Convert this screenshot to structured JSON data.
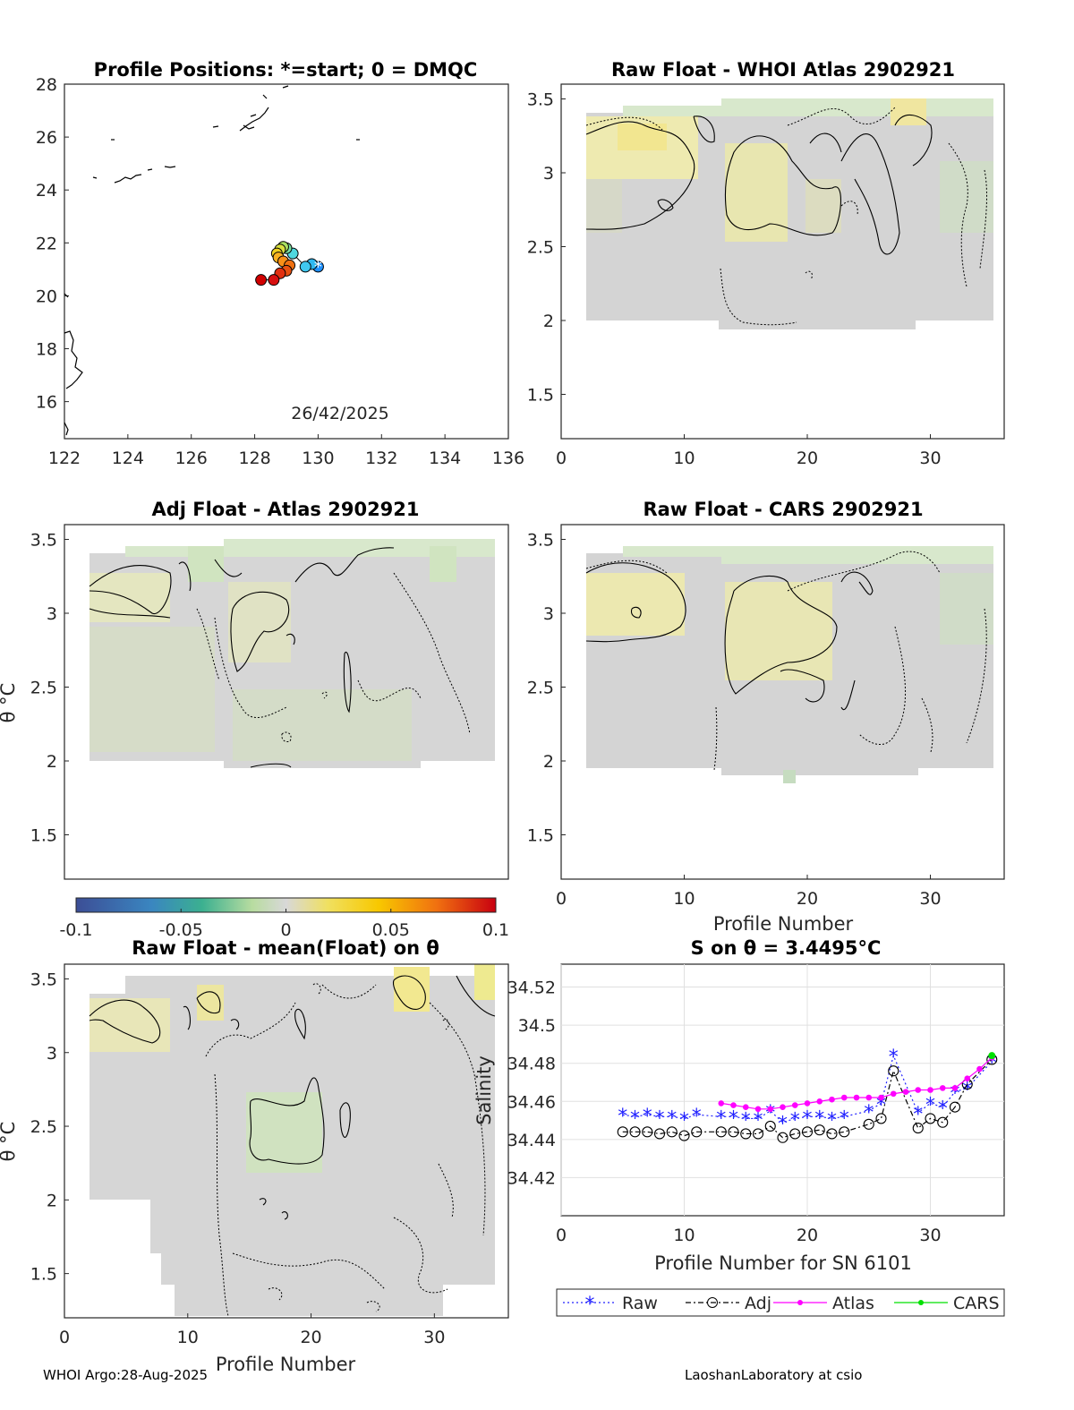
{
  "footer": {
    "left": "WHOI Argo:28-Aug-2025",
    "right": "LaoshanLaboratory at csio"
  },
  "chart_data": [
    {
      "id": "positions",
      "type": "scatter",
      "title": "Profile Positions: *=start; 0 = DMQC",
      "xlim": [
        122,
        136
      ],
      "ylim": [
        14.6,
        28
      ],
      "xticks": [
        122,
        124,
        126,
        128,
        130,
        132,
        134,
        136
      ],
      "yticks": [
        16,
        18,
        20,
        22,
        24,
        26,
        28
      ],
      "annotation": "26/42/2025",
      "start": [
        130.0,
        21.1
      ],
      "track": [
        {
          "lon": 130.0,
          "lat": 21.1,
          "color": "#1e90ff"
        },
        {
          "lon": 129.8,
          "lat": 21.2,
          "color": "#2fb8f0"
        },
        {
          "lon": 129.6,
          "lat": 21.1,
          "color": "#40c8f0"
        },
        {
          "lon": 129.2,
          "lat": 21.6,
          "color": "#4fd8e0"
        },
        {
          "lon": 129.0,
          "lat": 21.8,
          "color": "#7be0a0"
        },
        {
          "lon": 128.9,
          "lat": 21.85,
          "color": "#a8e060"
        },
        {
          "lon": 128.8,
          "lat": 21.75,
          "color": "#d8e040"
        },
        {
          "lon": 128.7,
          "lat": 21.6,
          "color": "#f0d020"
        },
        {
          "lon": 128.75,
          "lat": 21.45,
          "color": "#f8b020"
        },
        {
          "lon": 128.9,
          "lat": 21.3,
          "color": "#f89018"
        },
        {
          "lon": 129.1,
          "lat": 21.15,
          "color": "#f07010"
        },
        {
          "lon": 129.0,
          "lat": 20.95,
          "color": "#e85010"
        },
        {
          "lon": 128.8,
          "lat": 20.85,
          "color": "#e03010"
        },
        {
          "lon": 128.6,
          "lat": 20.6,
          "color": "#d81010"
        },
        {
          "lon": 128.2,
          "lat": 20.6,
          "color": "#d00000"
        }
      ]
    },
    {
      "id": "raw-atlas",
      "type": "heatmap",
      "title": "Raw Float - WHOI Atlas  2902921",
      "xlim": [
        0,
        36
      ],
      "ylim": [
        1.2,
        3.6
      ],
      "xticks": [
        0,
        10,
        20,
        30
      ],
      "yticks": [
        1.5,
        2,
        2.5,
        3,
        3.5
      ],
      "xlabel": ""
    },
    {
      "id": "adj-atlas",
      "type": "heatmap",
      "title": "Adj Float - Atlas  2902921",
      "xlim": [
        0,
        36
      ],
      "ylim": [
        1.2,
        3.6
      ],
      "xticks": [],
      "yticks": [
        1.5,
        2,
        2.5,
        3,
        3.5
      ],
      "ylabel": "θ °C"
    },
    {
      "id": "raw-cars",
      "type": "heatmap",
      "title": "Raw Float - CARS  2902921",
      "xlim": [
        0,
        36
      ],
      "ylim": [
        1.2,
        3.6
      ],
      "xticks": [
        0,
        10,
        20,
        30
      ],
      "yticks": [
        1.5,
        2,
        2.5,
        3,
        3.5
      ],
      "xlabel": "Profile Number"
    },
    {
      "id": "colorbar",
      "type": "colorbar",
      "ticks": [
        "-0.1",
        "-0.05",
        "0",
        "0.05",
        "0.1"
      ],
      "range": [
        -0.1,
        0.1
      ]
    },
    {
      "id": "raw-mean",
      "type": "heatmap",
      "title": "Raw Float - mean(Float) on θ",
      "xlim": [
        0,
        36
      ],
      "ylim": [
        1.2,
        3.6
      ],
      "xticks": [
        0,
        10,
        20,
        30
      ],
      "yticks": [
        1.5,
        2,
        2.5,
        3,
        3.5
      ],
      "xlabel": "Profile Number",
      "ylabel": "θ °C"
    },
    {
      "id": "salinity",
      "type": "line",
      "title": "S on θ = 3.4495°C",
      "xlim": [
        0,
        36
      ],
      "ylim": [
        34.4,
        34.532
      ],
      "xticks": [
        0,
        10,
        20,
        30
      ],
      "yticks": [
        34.42,
        34.44,
        34.46,
        34.48,
        34.5,
        34.52
      ],
      "xlabel": "Profile Number for SN 6101",
      "ylabel": "Salinity",
      "series": [
        {
          "name": "Raw",
          "color": "#2020ff",
          "x": [
            5,
            6,
            7,
            8,
            9,
            10,
            11,
            13,
            14,
            15,
            16,
            17,
            18,
            19,
            20,
            21,
            22,
            23,
            25,
            26,
            27,
            29,
            30,
            31,
            32,
            33,
            35
          ],
          "values": [
            34.453,
            34.452,
            34.453,
            34.452,
            34.452,
            34.451,
            34.453,
            34.452,
            34.452,
            34.451,
            34.451,
            34.455,
            34.449,
            34.451,
            34.452,
            34.452,
            34.451,
            34.452,
            34.455,
            34.459,
            34.484,
            34.454,
            34.459,
            34.457,
            34.465,
            34.467,
            34.481
          ]
        },
        {
          "name": "Adj",
          "color": "#000000",
          "x": [
            5,
            6,
            7,
            8,
            9,
            10,
            11,
            13,
            14,
            15,
            16,
            17,
            18,
            19,
            20,
            21,
            22,
            23,
            25,
            26,
            27,
            29,
            30,
            31,
            32,
            33,
            35
          ],
          "values": [
            34.444,
            34.444,
            34.444,
            34.443,
            34.444,
            34.442,
            34.444,
            34.444,
            34.444,
            34.443,
            34.443,
            34.447,
            34.441,
            34.443,
            34.444,
            34.445,
            34.443,
            34.444,
            34.448,
            34.451,
            34.476,
            34.446,
            34.451,
            34.449,
            34.457,
            34.469,
            34.482
          ]
        },
        {
          "name": "Atlas",
          "color": "#ff00ff",
          "x": [
            13,
            14,
            15,
            16,
            17,
            18,
            19,
            20,
            21,
            22,
            23,
            24,
            25,
            26,
            27,
            28,
            29,
            30,
            31,
            32,
            33,
            34,
            35
          ],
          "values": [
            34.459,
            34.458,
            34.457,
            34.456,
            34.456,
            34.457,
            34.458,
            34.459,
            34.46,
            34.461,
            34.462,
            34.462,
            34.462,
            34.462,
            34.464,
            34.465,
            34.466,
            34.466,
            34.467,
            34.467,
            34.472,
            34.477,
            34.483
          ]
        },
        {
          "name": "CARS",
          "color": "#00e000",
          "x": [
            35
          ],
          "values": [
            34.484
          ]
        }
      ]
    }
  ]
}
